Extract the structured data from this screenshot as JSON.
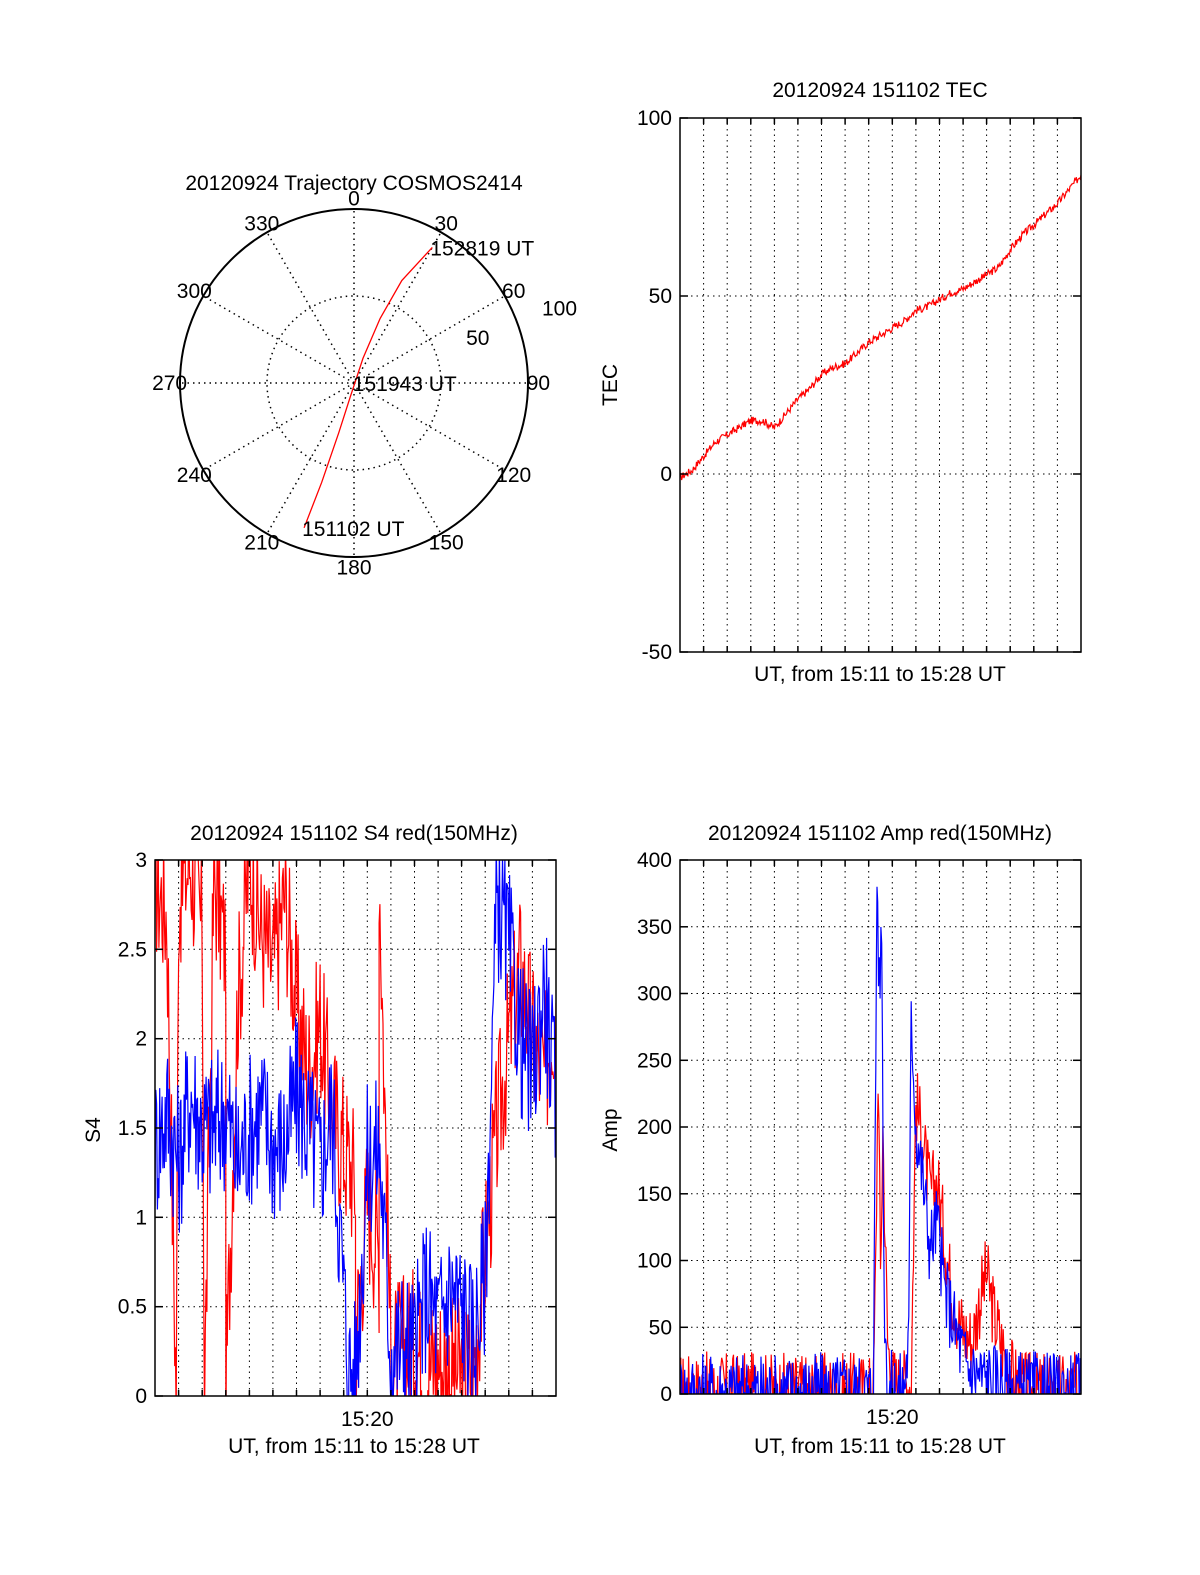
{
  "colors": {
    "red": "#ff0000",
    "blue": "#0000ff",
    "axis": "#000000",
    "grid": "#000000"
  },
  "chart_data": [
    {
      "id": "trajectory",
      "type": "polar",
      "title": "20120924 Trajectory COSMOS2414",
      "angle_labels": [
        "0",
        "30",
        "60",
        "90",
        "120",
        "150",
        "180",
        "210",
        "240",
        "270",
        "300",
        "330"
      ],
      "angles": [
        0,
        30,
        60,
        90,
        120,
        150,
        180,
        210,
        240,
        270,
        300,
        330
      ],
      "radial_ticks": [
        {
          "label": "50",
          "value": 50
        },
        {
          "label": "100",
          "value": 100
        }
      ],
      "rmax": 100,
      "track": {
        "color": "#ff0000",
        "points": [
          {
            "az": 199,
            "zen": 88
          },
          {
            "az": 198,
            "zen": 60
          },
          {
            "az": 197,
            "zen": 30
          },
          {
            "az": 195,
            "zen": 8
          },
          {
            "az": 105,
            "zen": 0.5
          },
          {
            "az": 20,
            "zen": 15
          },
          {
            "az": 22,
            "zen": 40
          },
          {
            "az": 25,
            "zen": 65
          },
          {
            "az": 30,
            "zen": 90
          }
        ]
      },
      "annotations": [
        {
          "text": "152819 UT",
          "az": 30,
          "zen": 90
        },
        {
          "text": "151943 UT",
          "az": 105,
          "zen": 0.5
        },
        {
          "text": "151102 UT",
          "az": 199,
          "zen": 88
        }
      ]
    },
    {
      "id": "tec",
      "type": "line",
      "title": "20120924 151102 TEC",
      "xlabel": "UT, from 15:11 to 15:28 UT",
      "ylabel": "TEC",
      "xlim": [
        0,
        17
      ],
      "ylim": [
        -50,
        100
      ],
      "yticks": [
        -50,
        0,
        50,
        100
      ],
      "ytick_labels": [
        "-50",
        "0",
        "50",
        "100"
      ],
      "grid": true,
      "x_gridlines": [
        1,
        2,
        3,
        4,
        5,
        6,
        7,
        8,
        9,
        10,
        11,
        12,
        13,
        14,
        15,
        16
      ],
      "y_gridlines": [
        0,
        50
      ],
      "series": [
        {
          "color": "#ff0000",
          "x": [
            0,
            0.5,
            1,
            1.5,
            2,
            2.5,
            3,
            3.5,
            4,
            4.5,
            5,
            5.5,
            6,
            6.5,
            7,
            7.5,
            8,
            8.5,
            9,
            9.5,
            10,
            10.5,
            11,
            11.5,
            12,
            12.5,
            13,
            13.5,
            14,
            14.5,
            15,
            15.5,
            16,
            16.5,
            17
          ],
          "y": [
            -1,
            1,
            5,
            9,
            11,
            13,
            15,
            15,
            13,
            17,
            21,
            24,
            28,
            30,
            31,
            34,
            37,
            39,
            41,
            43,
            46,
            47,
            49,
            51,
            52,
            54,
            56,
            58,
            63,
            67,
            70,
            73,
            76,
            80,
            84
          ]
        }
      ]
    },
    {
      "id": "s4",
      "type": "line",
      "title": "20120924 151102 S4 red(150MHz)",
      "xlabel": "UT, from 15:11 to 15:28 UT",
      "ylabel": "S4",
      "xlim": [
        0,
        17
      ],
      "ylim": [
        0,
        3
      ],
      "yticks": [
        0,
        0.5,
        1,
        1.5,
        2,
        2.5,
        3
      ],
      "ytick_labels": [
        "0",
        "0.5",
        "1",
        "1.5",
        "2",
        "2.5",
        "3"
      ],
      "xticks": [
        9
      ],
      "xtick_labels": [
        "15:20"
      ],
      "grid": true,
      "x_gridlines": [
        1,
        2,
        3,
        4,
        5,
        6,
        7,
        8,
        9,
        10,
        11,
        12,
        13,
        14,
        15,
        16
      ],
      "y_gridlines": [
        0.5,
        1,
        1.5,
        2,
        2.5
      ],
      "series": [
        {
          "color": "#ff0000",
          "x": [
            0,
            0.5,
            0.9,
            1,
            1.5,
            2,
            2.1,
            2.5,
            3,
            3,
            3.5,
            4,
            4.5,
            5,
            5.5,
            6,
            6.5,
            7,
            7.5,
            8,
            8.5,
            8.5,
            9,
            9.5,
            9.5,
            10,
            10.5,
            11,
            11.5,
            12,
            12.5,
            13,
            13.5,
            14,
            14.5,
            15,
            15.5,
            16,
            16.5,
            17
          ],
          "y": [
            2.9,
            2.7,
            0,
            2.8,
            3,
            2.6,
            0,
            2.9,
            2.5,
            0,
            2.2,
            3,
            2.6,
            2.4,
            2.8,
            2.2,
            1.8,
            2.1,
            1.6,
            1.4,
            1.2,
            0.3,
            1.1,
            0.8,
            3,
            0.2,
            0.25,
            0.3,
            0.15,
            0.2,
            0.15,
            0.12,
            0.15,
            0.8,
            1.5,
            2.0,
            2.4,
            2.0,
            1.8,
            2.2
          ]
        },
        {
          "color": "#0000ff",
          "x": [
            0,
            0.5,
            1,
            1.5,
            2,
            2.5,
            3,
            3.5,
            4,
            4.5,
            5,
            5.5,
            6,
            6.5,
            7,
            7.5,
            8,
            8.2,
            8.5,
            9,
            9.5,
            10,
            10.5,
            11,
            11.5,
            12,
            12.5,
            13,
            13.5,
            14,
            14.5,
            15,
            15.5,
            16,
            16.5,
            17
          ],
          "y": [
            1.4,
            1.6,
            1.3,
            1.7,
            1.5,
            1.5,
            1.6,
            1.3,
            1.5,
            1.6,
            1.4,
            1.4,
            1.7,
            1.5,
            1.3,
            1.6,
            0.6,
            0.15,
            0.12,
            1.3,
            1.4,
            0.25,
            0.3,
            0.25,
            0.6,
            0.4,
            0.6,
            0.5,
            0.3,
            0.7,
            2.8,
            2.5,
            2.0,
            1.8,
            2.3,
            1.6
          ]
        }
      ]
    },
    {
      "id": "amp",
      "type": "line",
      "title": "20120924 151102 Amp red(150MHz)",
      "xlabel": "UT, from 15:11 to 15:28 UT",
      "ylabel": "Amp",
      "xlim": [
        0,
        17
      ],
      "ylim": [
        0,
        400
      ],
      "yticks": [
        0,
        50,
        100,
        150,
        200,
        250,
        300,
        350,
        400
      ],
      "ytick_labels": [
        "0",
        "50",
        "100",
        "150",
        "200",
        "250",
        "300",
        "350",
        "400"
      ],
      "xticks": [
        9
      ],
      "xtick_labels": [
        "15:20"
      ],
      "grid": true,
      "x_gridlines": [
        1,
        2,
        3,
        4,
        5,
        6,
        7,
        8,
        9,
        10,
        11,
        12,
        13,
        14,
        15,
        16
      ],
      "y_gridlines": [
        50,
        100,
        150,
        200,
        250,
        300,
        350
      ],
      "series": [
        {
          "color": "#ff0000",
          "x": [
            0,
            8.2,
            8.3,
            8.4,
            8.5,
            8.6,
            8.8,
            9.0,
            9.3,
            9.6,
            9.8,
            10.0,
            10.3,
            10.6,
            10.9,
            11.2,
            11.5,
            11.8,
            12.1,
            12.4,
            12.7,
            13.0,
            13.3,
            13.6,
            14.0,
            14.5,
            15.0,
            17
          ],
          "y": [
            2,
            2,
            100,
            250,
            90,
            200,
            40,
            10,
            5,
            8,
            10,
            220,
            190,
            150,
            160,
            120,
            80,
            55,
            45,
            40,
            70,
            90,
            60,
            40,
            15,
            3,
            2,
            2
          ]
        },
        {
          "color": "#0000ff",
          "x": [
            0,
            8.1,
            8.2,
            8.3,
            8.35,
            8.45,
            8.55,
            8.65,
            8.8,
            9.0,
            9.5,
            9.7,
            9.8,
            10.0,
            10.3,
            10.6,
            10.9,
            11.2,
            11.5,
            11.8,
            12.2,
            12.6,
            13.0,
            13.5,
            14.0,
            14.5,
            15.0,
            17
          ],
          "y": [
            2,
            2,
            5,
            250,
            395,
            300,
            350,
            80,
            5,
            3,
            5,
            40,
            290,
            200,
            160,
            110,
            130,
            80,
            60,
            40,
            20,
            15,
            12,
            10,
            5,
            3,
            2,
            2
          ]
        }
      ]
    }
  ]
}
